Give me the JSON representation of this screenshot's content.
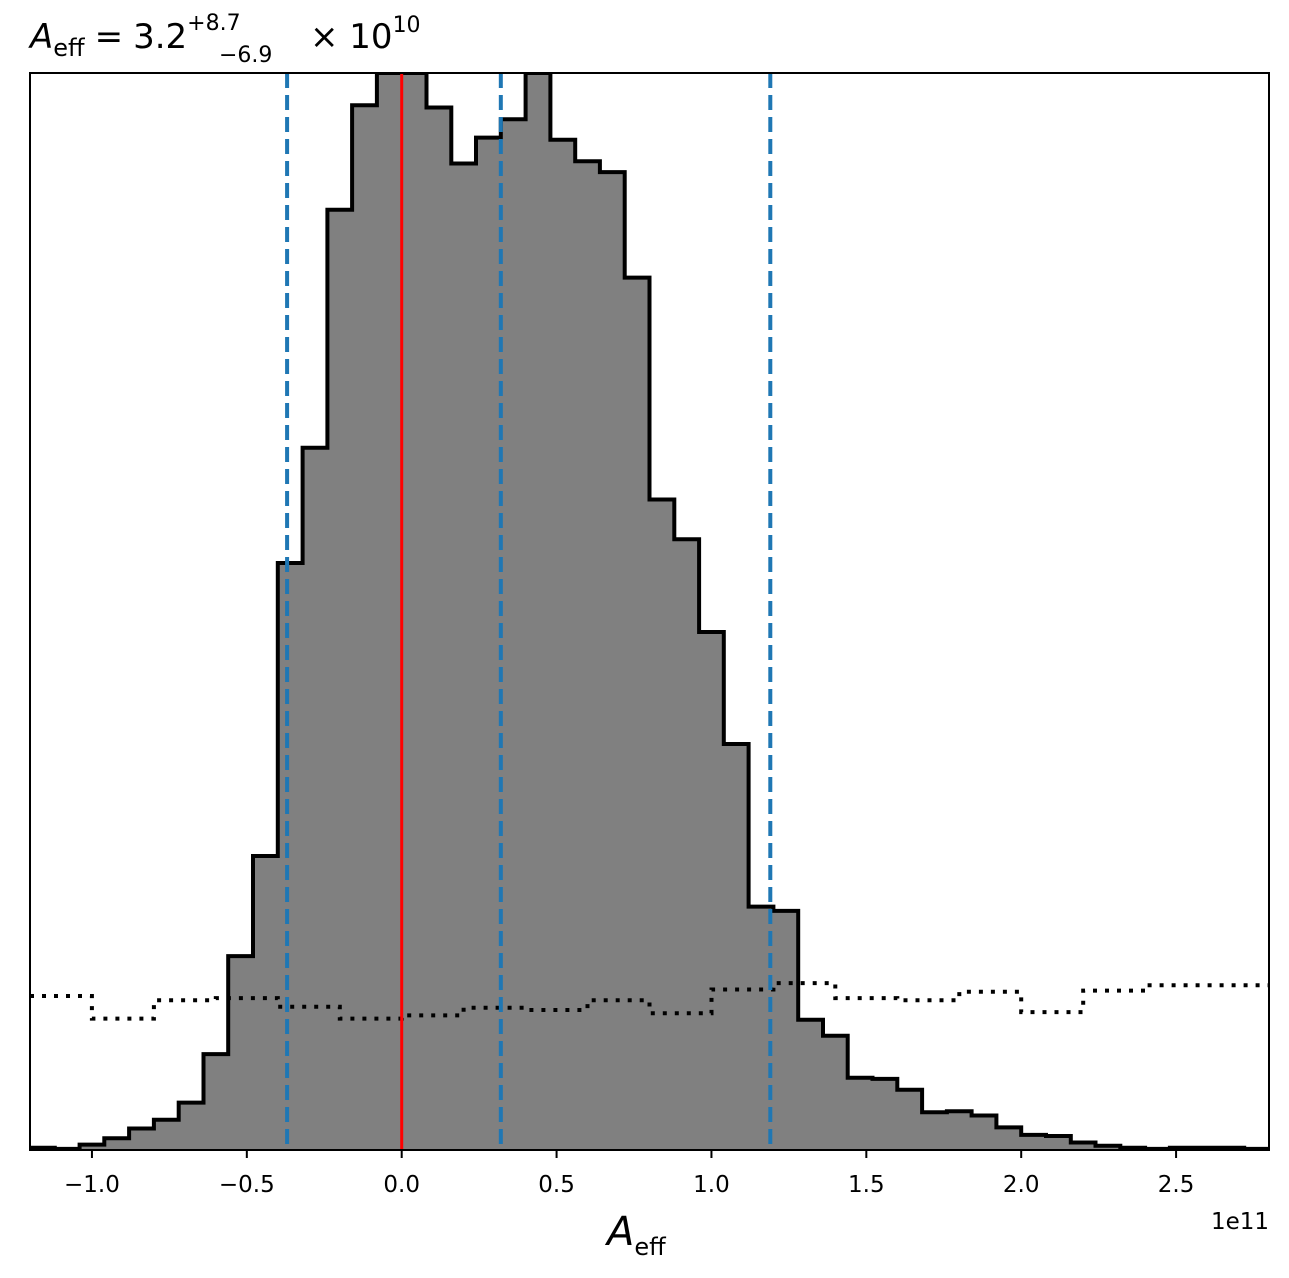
{
  "chart_data": {
    "type": "histogram",
    "title": {
      "symbol": "A",
      "symbol_sub": "eff",
      "equals": "=",
      "value": "3.2",
      "upper": "+8.7",
      "lower": "−6.9",
      "times": "× 10",
      "exponent": "10"
    },
    "xlabel": {
      "symbol": "A",
      "sub": "eff"
    },
    "x_offset_label": "1e11",
    "x_units_scale": 100000000000.0,
    "xlim": [
      -1.2,
      2.8
    ],
    "ylim": [
      0,
      1.0
    ],
    "y_ticks_shown": false,
    "x_ticks": [
      -1.0,
      -0.5,
      0.0,
      0.5,
      1.0,
      1.5,
      2.0,
      2.5
    ],
    "x_tick_labels": [
      "−1.0",
      "−0.5",
      "0.0",
      "0.5",
      "1.0",
      "1.5",
      "2.0",
      "2.5"
    ],
    "series": [
      {
        "kind": "posterior",
        "style": "filled-step",
        "fill_color": "#808080",
        "edge_color": "#000000",
        "bin_edges": [
          -1.2,
          -1.12,
          -1.04,
          -0.96,
          -0.88,
          -0.8,
          -0.72,
          -0.64,
          -0.56,
          -0.48,
          -0.4,
          -0.32,
          -0.24,
          -0.16,
          -0.08,
          0.0,
          0.08,
          0.16,
          0.24,
          0.32,
          0.4,
          0.48,
          0.56,
          0.64,
          0.72,
          0.8,
          0.88,
          0.96,
          1.04,
          1.12,
          1.2,
          1.28,
          1.36,
          1.44,
          1.52,
          1.6,
          1.68,
          1.76,
          1.84,
          1.92,
          2.0,
          2.08,
          2.16,
          2.24,
          2.32,
          2.4,
          2.48,
          2.56,
          2.64,
          2.72,
          2.8
        ],
        "heights": [
          0.002,
          0.001,
          0.005,
          0.011,
          0.02,
          0.028,
          0.044,
          0.089,
          0.18,
          0.273,
          0.545,
          0.652,
          0.873,
          0.97,
          1.0,
          1.0,
          0.968,
          0.916,
          0.94,
          0.957,
          1.0,
          0.938,
          0.918,
          0.908,
          0.81,
          0.604,
          0.567,
          0.481,
          0.377,
          0.226,
          0.222,
          0.121,
          0.106,
          0.067,
          0.066,
          0.056,
          0.035,
          0.036,
          0.032,
          0.021,
          0.014,
          0.013,
          0.007,
          0.004,
          0.002,
          0.001,
          0.002,
          0.002,
          0.002,
          0.001
        ]
      },
      {
        "kind": "prior",
        "style": "dotted-step",
        "edge_color": "#000000",
        "bin_edges": [
          -1.2,
          -1.0,
          -0.8,
          -0.6,
          -0.4,
          -0.2,
          0.0,
          0.2,
          0.4,
          0.6,
          0.8,
          1.0,
          1.2,
          1.4,
          1.6,
          1.8,
          2.0,
          2.2,
          2.4,
          2.6,
          2.8
        ],
        "heights": [
          0.143,
          0.122,
          0.139,
          0.141,
          0.133,
          0.122,
          0.125,
          0.132,
          0.13,
          0.139,
          0.127,
          0.149,
          0.155,
          0.141,
          0.139,
          0.147,
          0.128,
          0.148,
          0.153,
          0.153
        ]
      }
    ],
    "vertical_lines": [
      {
        "x": 0.0,
        "color": "#ff0000",
        "style": "solid",
        "role": "truth"
      },
      {
        "x": -0.37,
        "color": "#1f77b4",
        "style": "dashed",
        "role": "lower bound"
      },
      {
        "x": 0.32,
        "color": "#1f77b4",
        "style": "dashed",
        "role": "median"
      },
      {
        "x": 1.19,
        "color": "#1f77b4",
        "style": "dashed",
        "role": "upper bound"
      }
    ],
    "grid": false,
    "legend": "none"
  }
}
